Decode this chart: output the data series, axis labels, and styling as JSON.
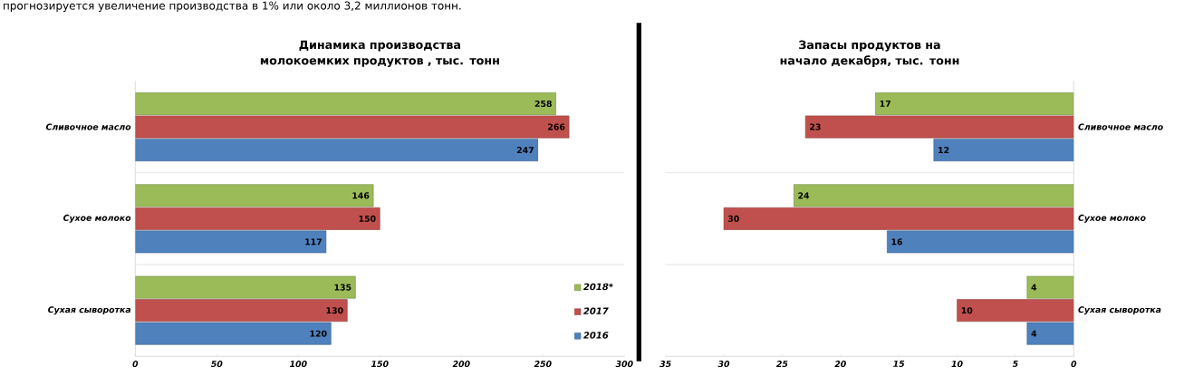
{
  "chart_data": [
    {
      "type": "bar",
      "orientation": "horizontal",
      "title": "Динамика производства молокоемких продуктов , тыс. тонн",
      "annotations": [
        "прогнозируется увеличение производства в 1% или около 3,2 миллионов тонн."
      ],
      "categories": [
        "Сливочное масло",
        "Сухое молоко",
        "Сухая сыворотка"
      ],
      "series": [
        {
          "name": "2018*",
          "color": "#9bbb59",
          "values": [
            258,
            146,
            135
          ]
        },
        {
          "name": "2017",
          "color": "#c0504d",
          "values": [
            266,
            150,
            130
          ]
        },
        {
          "name": "2016",
          "color": "#4f81bd",
          "values": [
            247,
            117,
            120
          ]
        }
      ],
      "xlim": [
        0,
        300
      ],
      "xticks": [
        0,
        50,
        100,
        150,
        200,
        250,
        300
      ],
      "data_labels": true,
      "grid": "y",
      "legend": "bottom right"
    },
    {
      "type": "bar",
      "orientation": "horizontal",
      "title": "Запасы продуктов на начало декабря, тыс. тонн",
      "categories": [
        "Сливочное масло",
        "Сухое молоко",
        "Сухая сыворотка"
      ],
      "series": [
        {
          "color": "#9bbb59",
          "values": [
            17,
            24,
            4
          ]
        },
        {
          "color": "#c0504d",
          "values": [
            23,
            30,
            10
          ]
        },
        {
          "color": "#4f81bd",
          "values": [
            12,
            16,
            4
          ]
        }
      ],
      "xlim": [
        35,
        0
      ],
      "xticks": [
        35,
        30,
        25,
        20,
        15,
        10,
        5,
        0
      ],
      "data_labels": true,
      "grid": "y"
    }
  ]
}
